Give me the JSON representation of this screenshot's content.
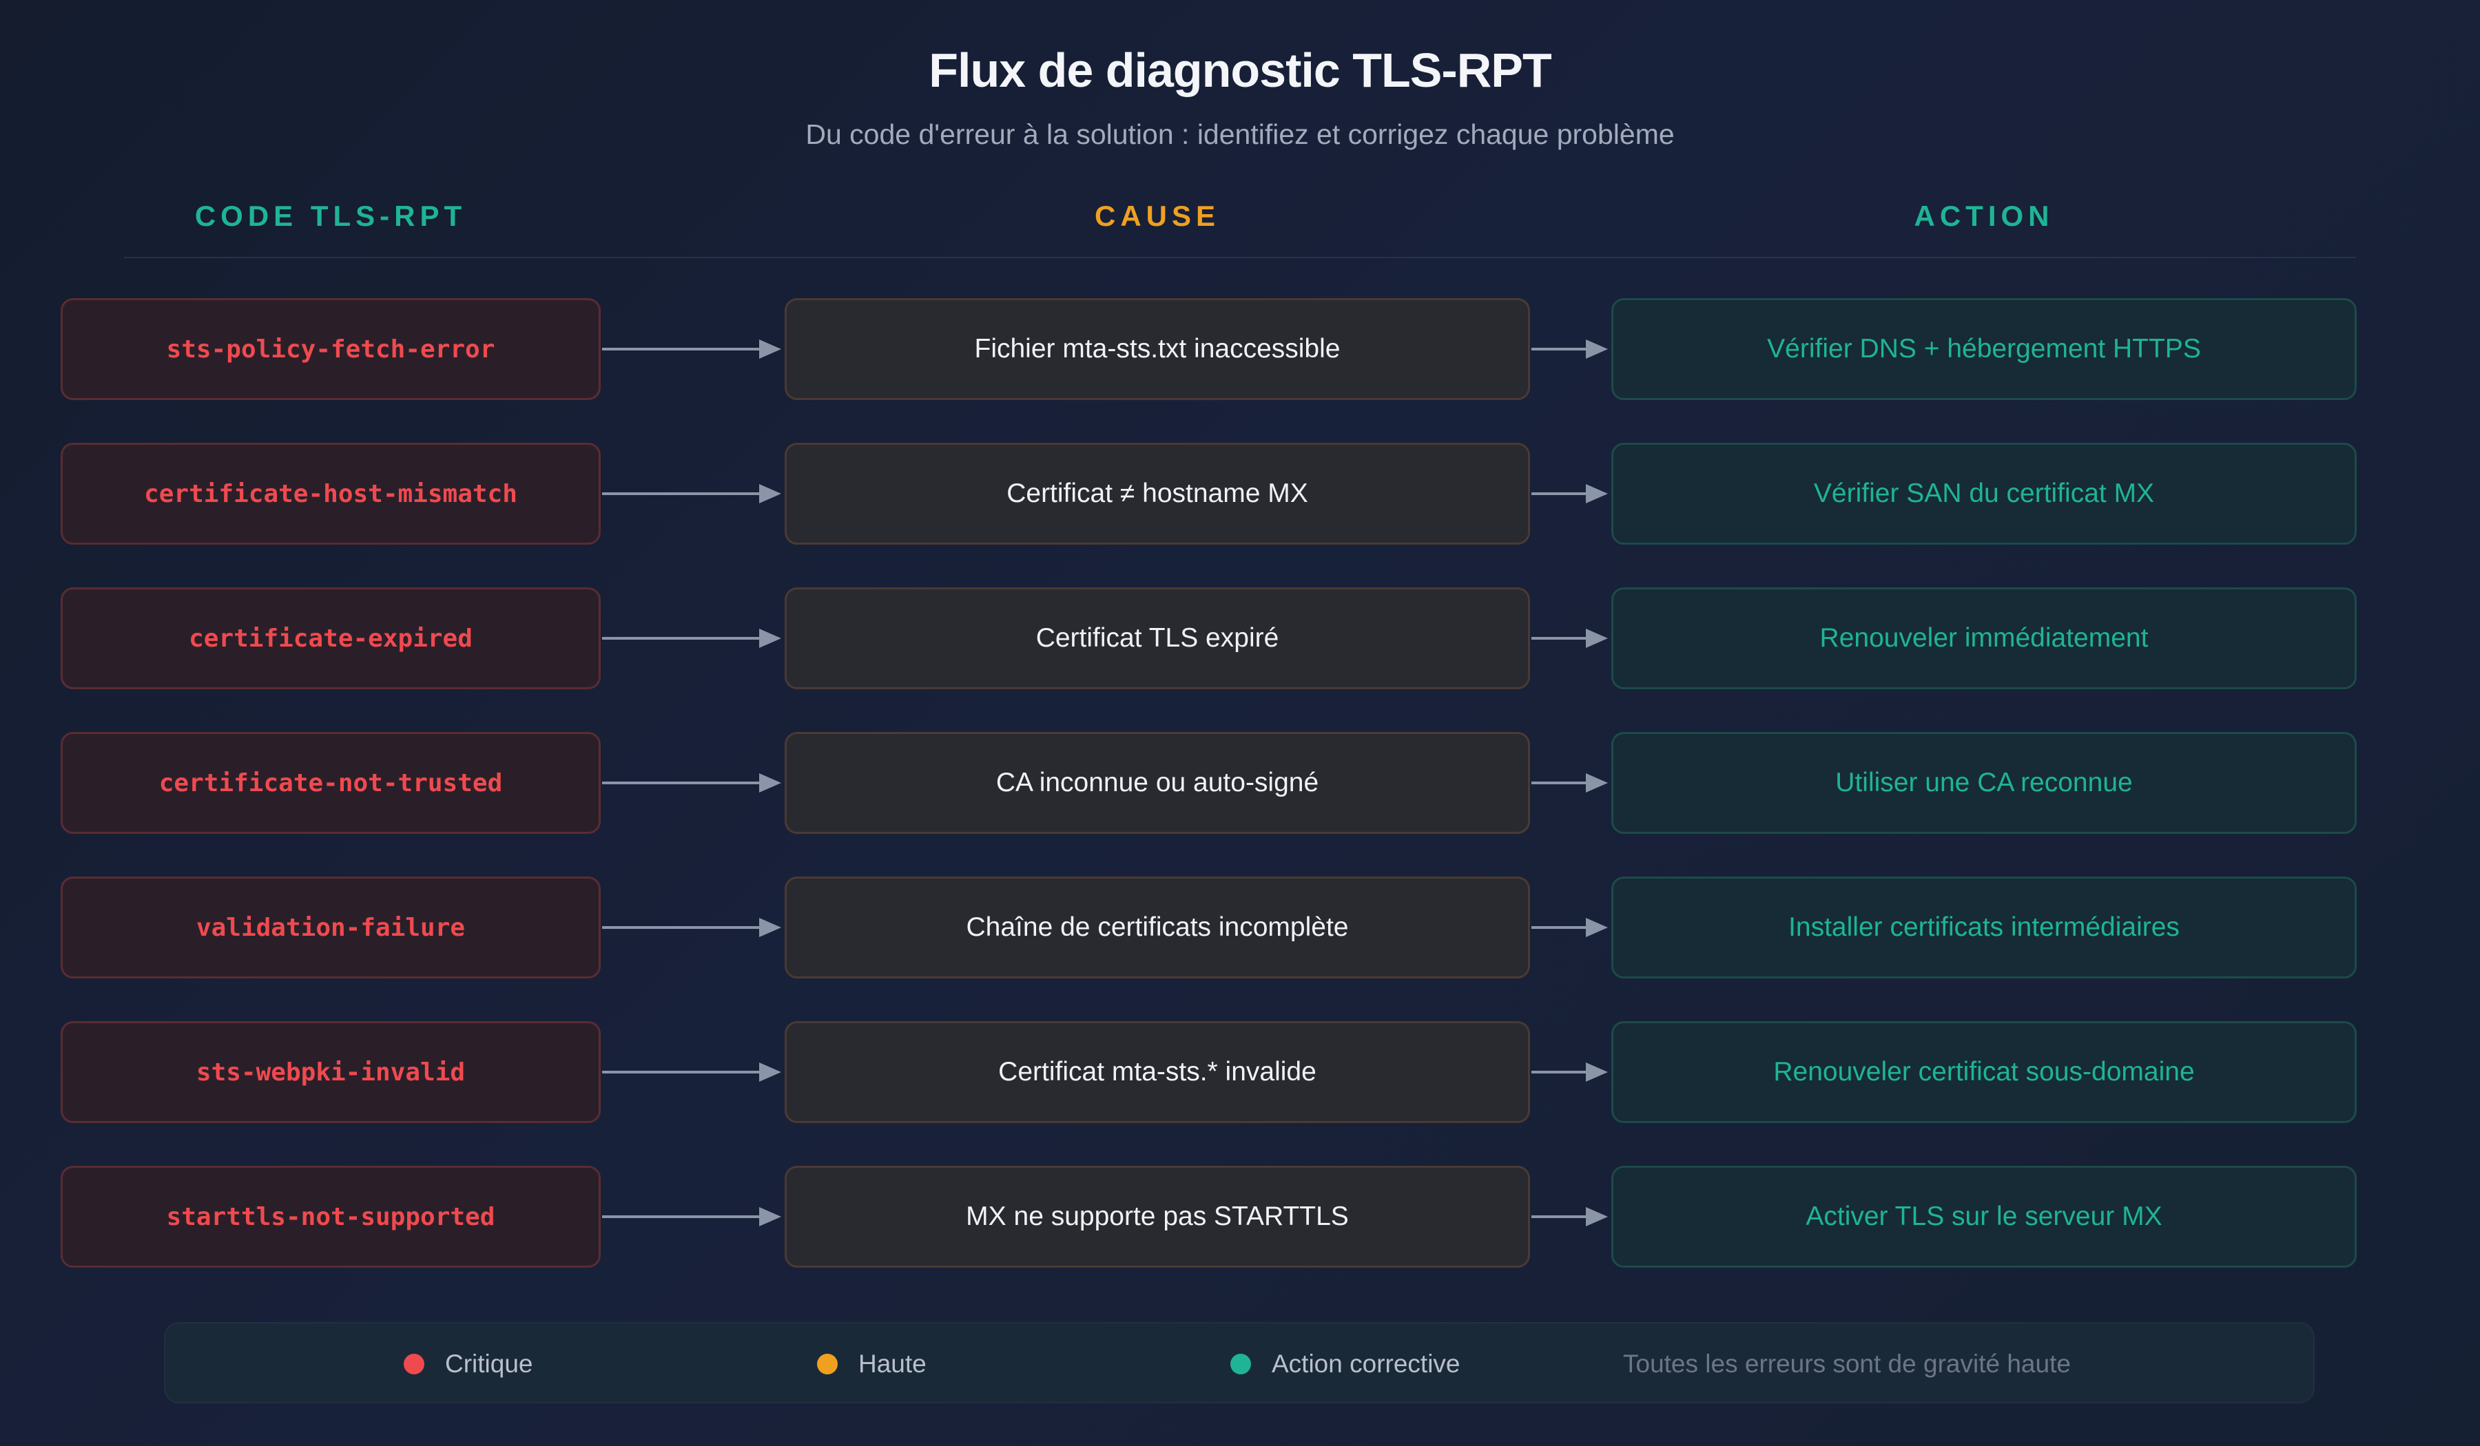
{
  "title": "Flux de diagnostic TLS-RPT",
  "subtitle": "Du code d'erreur à la solution : identifiez et corrigez chaque problème",
  "columns": {
    "code": "CODE TLS-RPT",
    "cause": "CAUSE",
    "action": "ACTION"
  },
  "colors": {
    "code_header": "#1fb496",
    "cause_header": "#f0a020",
    "action_header": "#1fb496",
    "critical": "#ef4a4f",
    "high": "#f0a020",
    "corrective": "#1fb496"
  },
  "rows": [
    {
      "code": "sts-policy-fetch-error",
      "cause": "Fichier mta-sts.txt inaccessible",
      "action": "Vérifier DNS + hébergement HTTPS"
    },
    {
      "code": "certificate-host-mismatch",
      "cause": "Certificat ≠ hostname MX",
      "action": "Vérifier SAN du certificat MX"
    },
    {
      "code": "certificate-expired",
      "cause": "Certificat TLS expiré",
      "action": "Renouveler immédiatement"
    },
    {
      "code": "certificate-not-trusted",
      "cause": "CA inconnue ou auto-signé",
      "action": "Utiliser une CA reconnue"
    },
    {
      "code": "validation-failure",
      "cause": "Chaîne de certificats incomplète",
      "action": "Installer certificats intermédiaires"
    },
    {
      "code": "sts-webpki-invalid",
      "cause": "Certificat mta-sts.* invalide",
      "action": "Renouveler certificat sous-domaine"
    },
    {
      "code": "starttls-not-supported",
      "cause": "MX ne supporte pas STARTTLS",
      "action": "Activer TLS sur le serveur MX"
    }
  ],
  "legend": {
    "critical_label": "Critique",
    "high_label": "Haute",
    "corrective_label": "Action corrective",
    "note": "Toutes les erreurs sont de gravité haute"
  }
}
